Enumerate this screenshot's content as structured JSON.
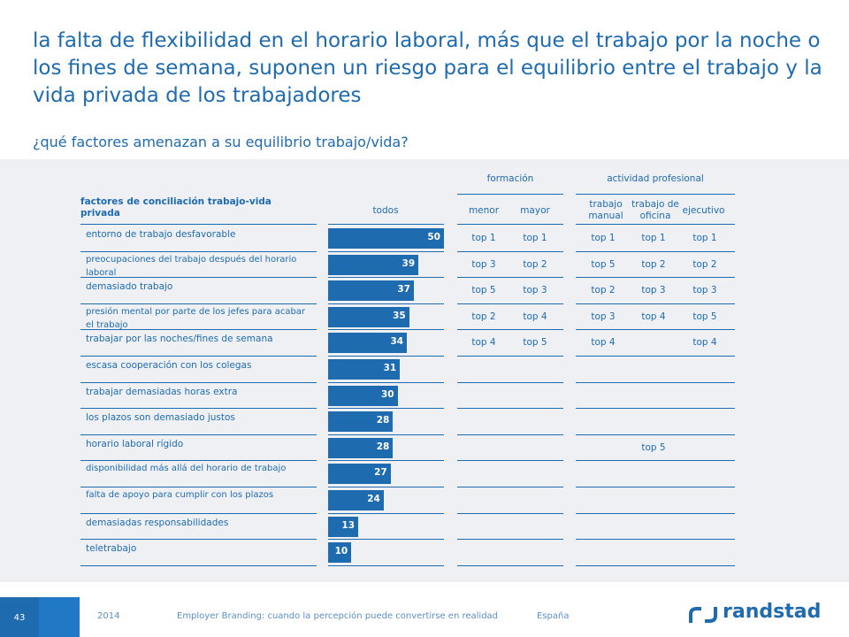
{
  "title": "la falta de flexibilidad en el horario laboral, más que el trabajo por la noche o los fines de semana, suponen un riesgo para el equilibrio entre el trabajo y la vida privada de los trabajadores",
  "subtitle": "¿qué factores amenazan a su equilibrio trabajo/vida?",
  "headers": {
    "factores": "factores de conciliación trabajo-vida privada",
    "todos": "todos",
    "formacion": "formación",
    "menor": "menor",
    "mayor": "mayor",
    "actividad": "actividad profesional",
    "manual": "trabajo manual",
    "oficina": "trabajo de oficina",
    "ejecutivo": "ejecutivo"
  },
  "chart_data": {
    "type": "bar",
    "orientation": "horizontal",
    "categories": [
      "entorno de trabajo desfavorable",
      "preocupaciones del trabajo después del horario laboral",
      "demasiado trabajo",
      "presión mental por parte de los jefes para acabar el trabajo",
      "trabajar por las noches/fines de semana",
      "escasa cooperación con los colegas",
      "trabajar demasiadas horas extra",
      "los plazos son demasiado justos",
      "horario laboral rígido",
      "disponibilidad más allá del horario de trabajo",
      "falta de apoyo para cumplir con los plazos",
      "demasiadas responsabilidades",
      "teletrabajo"
    ],
    "values": [
      50,
      39,
      37,
      35,
      34,
      31,
      30,
      28,
      28,
      27,
      24,
      13,
      10
    ],
    "rankings": {
      "menor": [
        "top 1",
        "top 3",
        "top 5",
        "top 2",
        "top 4",
        "",
        "",
        "",
        "",
        "",
        "",
        "",
        ""
      ],
      "mayor": [
        "top 1",
        "top 2",
        "top 3",
        "top 4",
        "top 5",
        "",
        "",
        "",
        "",
        "",
        "",
        "",
        ""
      ],
      "manual": [
        "top 1",
        "top 5",
        "top 2",
        "top 3",
        "top 4",
        "",
        "",
        "",
        "",
        "",
        "",
        "",
        ""
      ],
      "oficina": [
        "top 1",
        "top 2",
        "top 3",
        "top 4",
        "",
        "",
        "",
        "",
        "top 5",
        "",
        "",
        "",
        ""
      ],
      "ejecutivo": [
        "top 1",
        "top 2",
        "top 3",
        "top 5",
        "top 4",
        "",
        "",
        "",
        "",
        "",
        "",
        "",
        ""
      ]
    }
  },
  "footer": {
    "page": "43",
    "year": "2014",
    "doc": "Employer Branding: cuando la percepción puede convertirse en realidad",
    "country": "España",
    "brand": "randstad"
  }
}
